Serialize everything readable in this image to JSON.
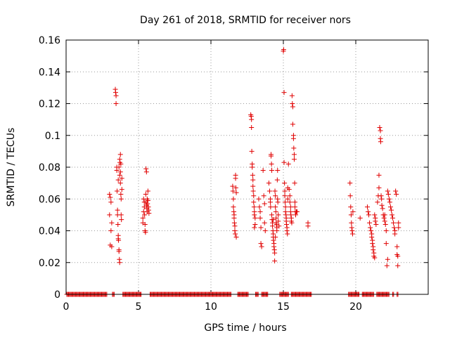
{
  "chart_data": {
    "type": "scatter",
    "title": "Day 261 of 2018, SRMTID for receiver nors",
    "xlabel": "GPS time / hours",
    "ylabel": "SRMTID / TECUs",
    "xlim": [
      0,
      25
    ],
    "ylim": [
      0,
      0.16
    ],
    "grid": true,
    "x_ticks": [
      0,
      5,
      10,
      15,
      20
    ],
    "x_tick_labels": [
      "0",
      "5",
      "10",
      "15",
      "20"
    ],
    "y_ticks": [
      0,
      0.02,
      0.04,
      0.06,
      0.08,
      0.1,
      0.12,
      0.14,
      0.16
    ],
    "y_tick_labels": [
      "0",
      "0.02",
      "0.04",
      "0.06",
      "0.08",
      "0.1",
      "0.12",
      "0.14",
      "0.16"
    ],
    "marker": "+",
    "color": "#e00000",
    "series": [
      {
        "name": "SRMTID",
        "points": [
          [
            3.0,
            0.063
          ],
          [
            3.0,
            0.05
          ],
          [
            3.05,
            0.061
          ],
          [
            3.05,
            0.031
          ],
          [
            3.1,
            0.058
          ],
          [
            3.1,
            0.04
          ],
          [
            3.15,
            0.045
          ],
          [
            3.15,
            0.03
          ],
          [
            3.4,
            0.129
          ],
          [
            3.42,
            0.127
          ],
          [
            3.45,
            0.125
          ],
          [
            3.45,
            0.12
          ],
          [
            3.5,
            0.08
          ],
          [
            3.5,
            0.078
          ],
          [
            3.52,
            0.065
          ],
          [
            3.55,
            0.053
          ],
          [
            3.55,
            0.05
          ],
          [
            3.58,
            0.044
          ],
          [
            3.6,
            0.037
          ],
          [
            3.6,
            0.035
          ],
          [
            3.62,
            0.034
          ],
          [
            3.65,
            0.028
          ],
          [
            3.65,
            0.027
          ],
          [
            3.68,
            0.022
          ],
          [
            3.7,
            0.02
          ],
          [
            3.7,
            0.085
          ],
          [
            3.72,
            0.083
          ],
          [
            3.75,
            0.088
          ],
          [
            3.75,
            0.077
          ],
          [
            3.75,
            0.07
          ],
          [
            3.78,
            0.082
          ],
          [
            3.78,
            0.063
          ],
          [
            3.8,
            0.06
          ],
          [
            3.8,
            0.05
          ],
          [
            3.82,
            0.047
          ],
          [
            3.85,
            0.073
          ],
          [
            3.85,
            0.066
          ],
          [
            3.6,
            0.072
          ],
          [
            3.65,
            0.08
          ],
          [
            3.7,
            0.075
          ],
          [
            5.3,
            0.048
          ],
          [
            5.3,
            0.045
          ],
          [
            5.35,
            0.06
          ],
          [
            5.35,
            0.052
          ],
          [
            5.4,
            0.058
          ],
          [
            5.4,
            0.055
          ],
          [
            5.42,
            0.05
          ],
          [
            5.45,
            0.044
          ],
          [
            5.45,
            0.04
          ],
          [
            5.5,
            0.063
          ],
          [
            5.5,
            0.058
          ],
          [
            5.52,
            0.079
          ],
          [
            5.55,
            0.077
          ],
          [
            5.55,
            0.056
          ],
          [
            5.58,
            0.054
          ],
          [
            5.6,
            0.052
          ],
          [
            5.6,
            0.06
          ],
          [
            5.62,
            0.057
          ],
          [
            5.65,
            0.065
          ],
          [
            5.65,
            0.059
          ],
          [
            5.68,
            0.055
          ],
          [
            5.7,
            0.053
          ],
          [
            5.72,
            0.051
          ],
          [
            5.48,
            0.039
          ],
          [
            11.5,
            0.068
          ],
          [
            11.52,
            0.065
          ],
          [
            11.55,
            0.06
          ],
          [
            11.55,
            0.055
          ],
          [
            11.58,
            0.052
          ],
          [
            11.6,
            0.05
          ],
          [
            11.6,
            0.048
          ],
          [
            11.62,
            0.045
          ],
          [
            11.65,
            0.043
          ],
          [
            11.65,
            0.04
          ],
          [
            11.68,
            0.038
          ],
          [
            11.7,
            0.075
          ],
          [
            11.7,
            0.073
          ],
          [
            11.72,
            0.067
          ],
          [
            11.75,
            0.064
          ],
          [
            11.75,
            0.036
          ],
          [
            12.75,
            0.113
          ],
          [
            12.78,
            0.112
          ],
          [
            12.8,
            0.11
          ],
          [
            12.8,
            0.105
          ],
          [
            12.82,
            0.09
          ],
          [
            12.85,
            0.082
          ],
          [
            12.85,
            0.08
          ],
          [
            12.88,
            0.075
          ],
          [
            12.9,
            0.072
          ],
          [
            12.9,
            0.068
          ],
          [
            12.92,
            0.065
          ],
          [
            12.95,
            0.062
          ],
          [
            12.95,
            0.058
          ],
          [
            12.98,
            0.055
          ],
          [
            13.0,
            0.052
          ],
          [
            13.0,
            0.05
          ],
          [
            13.05,
            0.048
          ],
          [
            13.05,
            0.044
          ],
          [
            13.0,
            0.042
          ],
          [
            13.3,
            0.06
          ],
          [
            13.35,
            0.055
          ],
          [
            13.4,
            0.052
          ],
          [
            13.4,
            0.048
          ],
          [
            13.45,
            0.042
          ],
          [
            13.45,
            0.032
          ],
          [
            13.5,
            0.03
          ],
          [
            13.6,
            0.078
          ],
          [
            13.65,
            0.062
          ],
          [
            13.7,
            0.057
          ],
          [
            13.7,
            0.045
          ],
          [
            13.75,
            0.04
          ],
          [
            14.0,
            0.07
          ],
          [
            14.05,
            0.065
          ],
          [
            14.1,
            0.06
          ],
          [
            14.1,
            0.058
          ],
          [
            14.12,
            0.055
          ],
          [
            14.15,
            0.088
          ],
          [
            14.15,
            0.087
          ],
          [
            14.18,
            0.082
          ],
          [
            14.2,
            0.078
          ],
          [
            14.2,
            0.05
          ],
          [
            14.22,
            0.047
          ],
          [
            14.25,
            0.045
          ],
          [
            14.25,
            0.043
          ],
          [
            14.28,
            0.04
          ],
          [
            14.3,
            0.038
          ],
          [
            14.3,
            0.036
          ],
          [
            14.32,
            0.034
          ],
          [
            14.35,
            0.032
          ],
          [
            14.35,
            0.03
          ],
          [
            14.38,
            0.028
          ],
          [
            14.4,
            0.026
          ],
          [
            14.4,
            0.021
          ],
          [
            14.42,
            0.065
          ],
          [
            14.45,
            0.062
          ],
          [
            14.45,
            0.055
          ],
          [
            14.48,
            0.052
          ],
          [
            14.5,
            0.048
          ],
          [
            14.5,
            0.045
          ],
          [
            14.52,
            0.044
          ],
          [
            14.55,
            0.042
          ],
          [
            14.55,
            0.04
          ],
          [
            14.58,
            0.072
          ],
          [
            14.6,
            0.078
          ],
          [
            14.6,
            0.06
          ],
          [
            14.62,
            0.058
          ],
          [
            14.65,
            0.05
          ],
          [
            14.65,
            0.046
          ],
          [
            14.7,
            0.043
          ],
          [
            14.3,
            0.047
          ],
          [
            14.45,
            0.036
          ],
          [
            15.0,
            0.153
          ],
          [
            15.02,
            0.154
          ],
          [
            15.05,
            0.127
          ],
          [
            15.05,
            0.083
          ],
          [
            15.08,
            0.07
          ],
          [
            15.1,
            0.065
          ],
          [
            15.1,
            0.062
          ],
          [
            15.12,
            0.058
          ],
          [
            15.15,
            0.055
          ],
          [
            15.15,
            0.052
          ],
          [
            15.18,
            0.05
          ],
          [
            15.2,
            0.048
          ],
          [
            15.2,
            0.046
          ],
          [
            15.22,
            0.044
          ],
          [
            15.25,
            0.042
          ],
          [
            15.25,
            0.04
          ],
          [
            15.28,
            0.038
          ],
          [
            15.3,
            0.067
          ],
          [
            15.3,
            0.06
          ],
          [
            15.35,
            0.082
          ],
          [
            15.4,
            0.066
          ],
          [
            15.45,
            0.062
          ],
          [
            15.45,
            0.058
          ],
          [
            15.5,
            0.055
          ],
          [
            15.5,
            0.052
          ],
          [
            15.52,
            0.05
          ],
          [
            15.55,
            0.048
          ],
          [
            15.55,
            0.046
          ],
          [
            15.58,
            0.045
          ],
          [
            15.6,
            0.125
          ],
          [
            15.62,
            0.12
          ],
          [
            15.65,
            0.118
          ],
          [
            15.65,
            0.107
          ],
          [
            15.7,
            0.1
          ],
          [
            15.7,
            0.098
          ],
          [
            15.72,
            0.092
          ],
          [
            15.75,
            0.088
          ],
          [
            15.75,
            0.085
          ],
          [
            15.78,
            0.07
          ],
          [
            15.8,
            0.058
          ],
          [
            15.8,
            0.055
          ],
          [
            15.82,
            0.052
          ],
          [
            15.85,
            0.05
          ],
          [
            15.9,
            0.052
          ],
          [
            15.95,
            0.052
          ],
          [
            16.7,
            0.045
          ],
          [
            16.7,
            0.043
          ],
          [
            19.6,
            0.07
          ],
          [
            19.62,
            0.062
          ],
          [
            19.65,
            0.055
          ],
          [
            19.68,
            0.05
          ],
          [
            19.7,
            0.045
          ],
          [
            19.72,
            0.042
          ],
          [
            19.75,
            0.04
          ],
          [
            19.78,
            0.038
          ],
          [
            19.8,
            0.052
          ],
          [
            20.3,
            0.048
          ],
          [
            20.8,
            0.055
          ],
          [
            20.85,
            0.052
          ],
          [
            20.9,
            0.05
          ],
          [
            20.95,
            0.045
          ],
          [
            21.0,
            0.042
          ],
          [
            21.05,
            0.04
          ],
          [
            21.1,
            0.038
          ],
          [
            21.1,
            0.036
          ],
          [
            21.15,
            0.034
          ],
          [
            21.15,
            0.032
          ],
          [
            21.2,
            0.03
          ],
          [
            21.2,
            0.028
          ],
          [
            21.25,
            0.026
          ],
          [
            21.25,
            0.024
          ],
          [
            21.3,
            0.023
          ],
          [
            21.3,
            0.05
          ],
          [
            21.35,
            0.048
          ],
          [
            21.35,
            0.046
          ],
          [
            21.4,
            0.044
          ],
          [
            21.5,
            0.058
          ],
          [
            21.55,
            0.062
          ],
          [
            21.6,
            0.067
          ],
          [
            21.6,
            0.075
          ],
          [
            21.65,
            0.105
          ],
          [
            21.7,
            0.103
          ],
          [
            21.7,
            0.098
          ],
          [
            21.72,
            0.096
          ],
          [
            21.75,
            0.062
          ],
          [
            21.78,
            0.06
          ],
          [
            21.8,
            0.056
          ],
          [
            21.85,
            0.054
          ],
          [
            21.9,
            0.05
          ],
          [
            21.95,
            0.048
          ],
          [
            22.0,
            0.046
          ],
          [
            22.05,
            0.044
          ],
          [
            22.1,
            0.04
          ],
          [
            22.1,
            0.032
          ],
          [
            22.15,
            0.018
          ],
          [
            22.2,
            0.065
          ],
          [
            22.25,
            0.063
          ],
          [
            22.3,
            0.06
          ],
          [
            22.35,
            0.058
          ],
          [
            22.4,
            0.055
          ],
          [
            22.45,
            0.053
          ],
          [
            22.5,
            0.05
          ],
          [
            22.55,
            0.048
          ],
          [
            22.6,
            0.045
          ],
          [
            22.65,
            0.042
          ],
          [
            22.7,
            0.04
          ],
          [
            22.7,
            0.038
          ],
          [
            22.75,
            0.065
          ],
          [
            22.8,
            0.063
          ],
          [
            22.85,
            0.03
          ],
          [
            22.85,
            0.025
          ],
          [
            22.9,
            0.024
          ],
          [
            22.9,
            0.018
          ],
          [
            22.95,
            0.045
          ],
          [
            22.95,
            0.042
          ],
          [
            22.0,
            0.05
          ],
          [
            22.2,
            0.022
          ]
        ],
        "zero_runs": [
          [
            0.05,
            2.85
          ],
          [
            3.2,
            3.32
          ],
          [
            3.92,
            5.22
          ],
          [
            5.8,
            11.42
          ],
          [
            11.85,
            12.62
          ],
          [
            13.08,
            13.28
          ],
          [
            13.5,
            13.92
          ],
          [
            14.75,
            15.35
          ],
          [
            15.55,
            16.95
          ],
          [
            19.5,
            20.25
          ],
          [
            20.45,
            21.25
          ],
          [
            21.45,
            22.3
          ],
          [
            22.55,
            22.62
          ],
          [
            22.85,
            22.95
          ]
        ]
      }
    ]
  }
}
